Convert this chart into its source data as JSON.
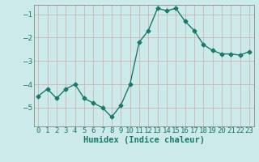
{
  "x": [
    0,
    1,
    2,
    3,
    4,
    5,
    6,
    7,
    8,
    9,
    10,
    11,
    12,
    13,
    14,
    15,
    16,
    17,
    18,
    19,
    20,
    21,
    22,
    23
  ],
  "y": [
    -4.5,
    -4.2,
    -4.6,
    -4.2,
    -4.0,
    -4.6,
    -4.8,
    -5.0,
    -5.4,
    -4.9,
    -4.0,
    -2.2,
    -1.7,
    -0.75,
    -0.85,
    -0.75,
    -1.3,
    -1.7,
    -2.3,
    -2.55,
    -2.7,
    -2.7,
    -2.75,
    -2.6
  ],
  "line_color": "#1a7a6a",
  "marker": "D",
  "marker_size": 2.5,
  "bg_color": "#cceaea",
  "grid_color": "#aaaaaa",
  "xlabel": "Humidex (Indice chaleur)",
  "ylim": [
    -5.8,
    -0.6
  ],
  "xlim": [
    -0.5,
    23.5
  ],
  "yticks": [
    -5,
    -4,
    -3,
    -2,
    -1
  ],
  "xtick_labels": [
    "0",
    "1",
    "2",
    "3",
    "4",
    "5",
    "6",
    "7",
    "8",
    "9",
    "10",
    "11",
    "12",
    "13",
    "14",
    "15",
    "16",
    "17",
    "18",
    "19",
    "20",
    "21",
    "22",
    "23"
  ],
  "xlabel_fontsize": 7.5,
  "tick_fontsize": 6.5,
  "line_width": 1.0,
  "tick_color": "#1a7a6a",
  "label_color": "#1a7a6a"
}
